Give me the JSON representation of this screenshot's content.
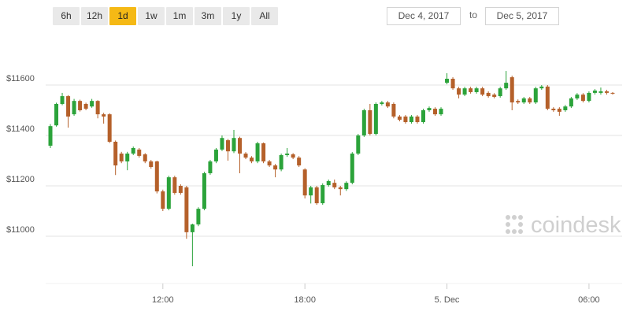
{
  "range_buttons": [
    "6h",
    "12h",
    "1d",
    "1w",
    "1m",
    "3m",
    "1y",
    "All"
  ],
  "selected_range": 2,
  "date_from": "Dec 4, 2017",
  "date_sep": "to",
  "date_to": "Dec 5, 2017",
  "watermark": "coindesk",
  "chart_data": {
    "type": "candlestick",
    "up_color": "#2ba33a",
    "down_color": "#b5602a",
    "grid": true,
    "xlim": [
      7.05,
      31.4
    ],
    "ylim": [
      10750,
      11812.5
    ],
    "xticks": [
      {
        "value": 12,
        "label": "12:00"
      },
      {
        "value": 18,
        "label": "18:00"
      },
      {
        "value": 24,
        "label": "5. Dec"
      },
      {
        "value": 30,
        "label": "06:00"
      }
    ],
    "yticks": [
      {
        "value": 11000,
        "label": "$11000"
      },
      {
        "value": 11200,
        "label": "$11200"
      },
      {
        "value": 11400,
        "label": "$11400"
      },
      {
        "value": 11600,
        "label": "$11600"
      }
    ],
    "x": [
      7.25,
      7.5,
      7.75,
      8,
      8.25,
      8.5,
      8.75,
      9,
      9.25,
      9.5,
      9.75,
      10,
      10.25,
      10.5,
      10.75,
      11,
      11.25,
      11.5,
      11.75,
      12,
      12.25,
      12.5,
      12.75,
      13,
      13.25,
      13.5,
      13.75,
      14,
      14.25,
      14.5,
      14.75,
      15,
      15.25,
      15.5,
      15.75,
      16,
      16.25,
      16.5,
      16.75,
      17,
      17.25,
      17.5,
      17.75,
      18,
      18.25,
      18.5,
      18.75,
      19,
      19.25,
      19.5,
      19.75,
      20,
      20.25,
      20.5,
      20.75,
      21,
      21.25,
      21.5,
      21.75,
      22,
      22.25,
      22.5,
      22.75,
      23,
      23.25,
      23.5,
      23.75,
      24,
      24.25,
      24.5,
      24.75,
      25,
      25.25,
      25.5,
      25.75,
      26,
      26.25,
      26.5,
      26.75,
      27,
      27.25,
      27.5,
      27.75,
      28,
      28.25,
      28.5,
      28.75,
      29,
      29.25,
      29.5,
      29.75,
      30,
      30.25,
      30.5,
      30.75,
      31
    ],
    "open": [
      11359,
      11440,
      11525,
      11556,
      11484,
      11537,
      11525,
      11515,
      11537,
      11484,
      11484,
      11375,
      11328,
      11297,
      11328,
      11344,
      11325,
      11297,
      11297,
      11178,
      11109,
      11234,
      11200,
      11194,
      11016,
      11047,
      11109,
      11250,
      11297,
      11344,
      11381,
      11337,
      11390,
      11328,
      11312,
      11297,
      11369,
      11297,
      11281,
      11265,
      11322,
      11325,
      11312,
      11265,
      11162,
      11194,
      11131,
      11203,
      11212,
      11194,
      11187,
      11212,
      11328,
      11400,
      11500,
      11406,
      11525,
      11531,
      11525,
      11475,
      11475,
      11453,
      11475,
      11453,
      11500,
      11506,
      11484,
      11609,
      11625,
      11587,
      11562,
      11587,
      11572,
      11587,
      11569,
      11562,
      11556,
      11587,
      11631,
      11537,
      11531,
      11547,
      11531,
      11587,
      11594,
      11506,
      11506,
      11500,
      11515,
      11547,
      11562,
      11537,
      11569,
      11569,
      11575,
      11569
    ],
    "high": [
      11445,
      11530,
      11569,
      11560,
      11545,
      11542,
      11530,
      11545,
      11540,
      11490,
      11488,
      11380,
      11335,
      11335,
      11356,
      11350,
      11330,
      11303,
      11300,
      11185,
      11240,
      11240,
      11206,
      11200,
      11050,
      11115,
      11256,
      11303,
      11350,
      11400,
      11386,
      11422,
      11395,
      11334,
      11318,
      11375,
      11372,
      11303,
      11287,
      11328,
      11350,
      11330,
      11318,
      11270,
      11200,
      11200,
      11210,
      11225,
      11225,
      11200,
      11218,
      11334,
      11406,
      11506,
      11525,
      11531,
      11537,
      11537,
      11531,
      11481,
      11481,
      11481,
      11481,
      11506,
      11515,
      11512,
      11512,
      11647,
      11631,
      11593,
      11593,
      11593,
      11593,
      11593,
      11575,
      11568,
      11593,
      11656,
      11637,
      11543,
      11553,
      11553,
      11593,
      11600,
      11600,
      11512,
      11512,
      11521,
      11553,
      11568,
      11568,
      11575,
      11584,
      11590,
      11581,
      11572
    ],
    "low": [
      11350,
      11435,
      11520,
      11431,
      11478,
      11495,
      11500,
      11510,
      11468,
      11447,
      11370,
      11243,
      11290,
      11262,
      11322,
      11312,
      11290,
      11268,
      11170,
      11100,
      11103,
      11165,
      11165,
      10990,
      10881,
      11040,
      11103,
      11244,
      11290,
      11338,
      11300,
      11330,
      11250,
      11306,
      11290,
      11290,
      11290,
      11275,
      11234,
      11258,
      11315,
      11306,
      11275,
      11150,
      11130,
      11125,
      11125,
      11197,
      11187,
      11162,
      11180,
      11206,
      11322,
      11394,
      11400,
      11400,
      11519,
      11509,
      11468,
      11456,
      11447,
      11447,
      11447,
      11447,
      11494,
      11478,
      11478,
      11603,
      11581,
      11547,
      11556,
      11566,
      11566,
      11556,
      11550,
      11547,
      11550,
      11581,
      11500,
      11525,
      11525,
      11525,
      11525,
      11581,
      11500,
      11494,
      11478,
      11494,
      11509,
      11541,
      11531,
      11531,
      11562,
      11562,
      11562,
      11562
    ],
    "close": [
      11437,
      11525,
      11556,
      11475,
      11537,
      11500,
      11506,
      11537,
      11484,
      11475,
      11375,
      11281,
      11297,
      11328,
      11350,
      11319,
      11297,
      11275,
      11178,
      11109,
      11234,
      11172,
      11172,
      11016,
      11047,
      11109,
      11250,
      11297,
      11344,
      11390,
      11337,
      11390,
      11328,
      11312,
      11297,
      11369,
      11297,
      11281,
      11265,
      11322,
      11328,
      11312,
      11281,
      11162,
      11194,
      11131,
      11203,
      11219,
      11194,
      11187,
      11212,
      11328,
      11400,
      11500,
      11406,
      11525,
      11531,
      11515,
      11475,
      11462,
      11453,
      11475,
      11453,
      11500,
      11509,
      11484,
      11506,
      11625,
      11587,
      11562,
      11587,
      11572,
      11587,
      11562,
      11556,
      11553,
      11587,
      11609,
      11531,
      11531,
      11547,
      11531,
      11587,
      11594,
      11506,
      11500,
      11494,
      11515,
      11547,
      11562,
      11537,
      11569,
      11578,
      11575,
      11569,
      11566
    ]
  }
}
